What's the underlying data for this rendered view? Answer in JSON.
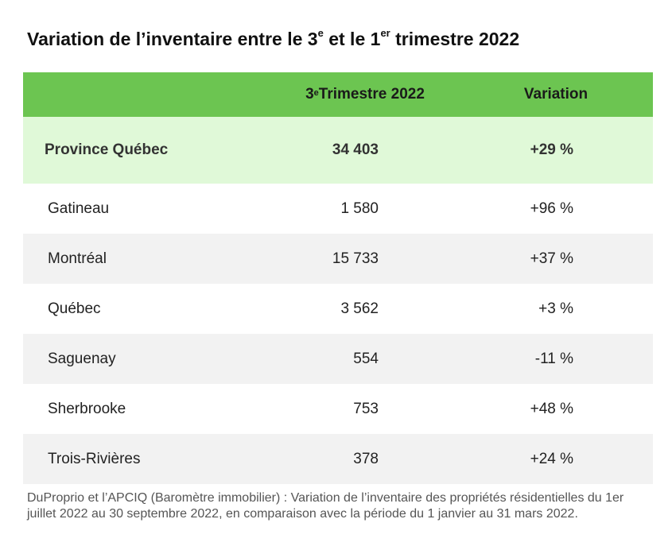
{
  "title": {
    "part1": "Variation de l’inventaire entre le 3",
    "sup1": "e",
    "part2": " et le 1",
    "sup2": "er",
    "part3": " trimestre 2022"
  },
  "chart_data": {
    "type": "table",
    "columns": [
      {
        "prefix": "",
        "sup": "",
        "suffix": ""
      },
      {
        "prefix": "3",
        "sup": "e",
        "suffix": " Trimestre 2022"
      },
      {
        "prefix": "Variation",
        "sup": "",
        "suffix": ""
      }
    ],
    "highlight_row": {
      "name": "Province Québec",
      "value": "34 403",
      "variation": "+29 %"
    },
    "rows": [
      {
        "name": "Gatineau",
        "value": "1 580",
        "variation": "+96 %"
      },
      {
        "name": "Montréal",
        "value": "15 733",
        "variation": "+37 %"
      },
      {
        "name": "Québec",
        "value": "3 562",
        "variation": "+3 %"
      },
      {
        "name": "Saguenay",
        "value": "554",
        "variation": "-11 %"
      },
      {
        "name": "Sherbrooke",
        "value": "753",
        "variation": "+48 %"
      },
      {
        "name": "Trois-Rivières",
        "value": "378",
        "variation": "+24 %"
      }
    ]
  },
  "footnote": "DuProprio et l’APCIQ (Baromètre immobilier) : Variation de l’inventaire des propriétés résidentielles du 1er juillet 2022 au 30 septembre 2022, en comparaison avec la période du 1 janvier au 31 mars 2022.",
  "colors": {
    "header_bg": "#6cc551",
    "highlight_bg": "#e0f9d8",
    "alt_row_bg": "#f2f2f2"
  }
}
